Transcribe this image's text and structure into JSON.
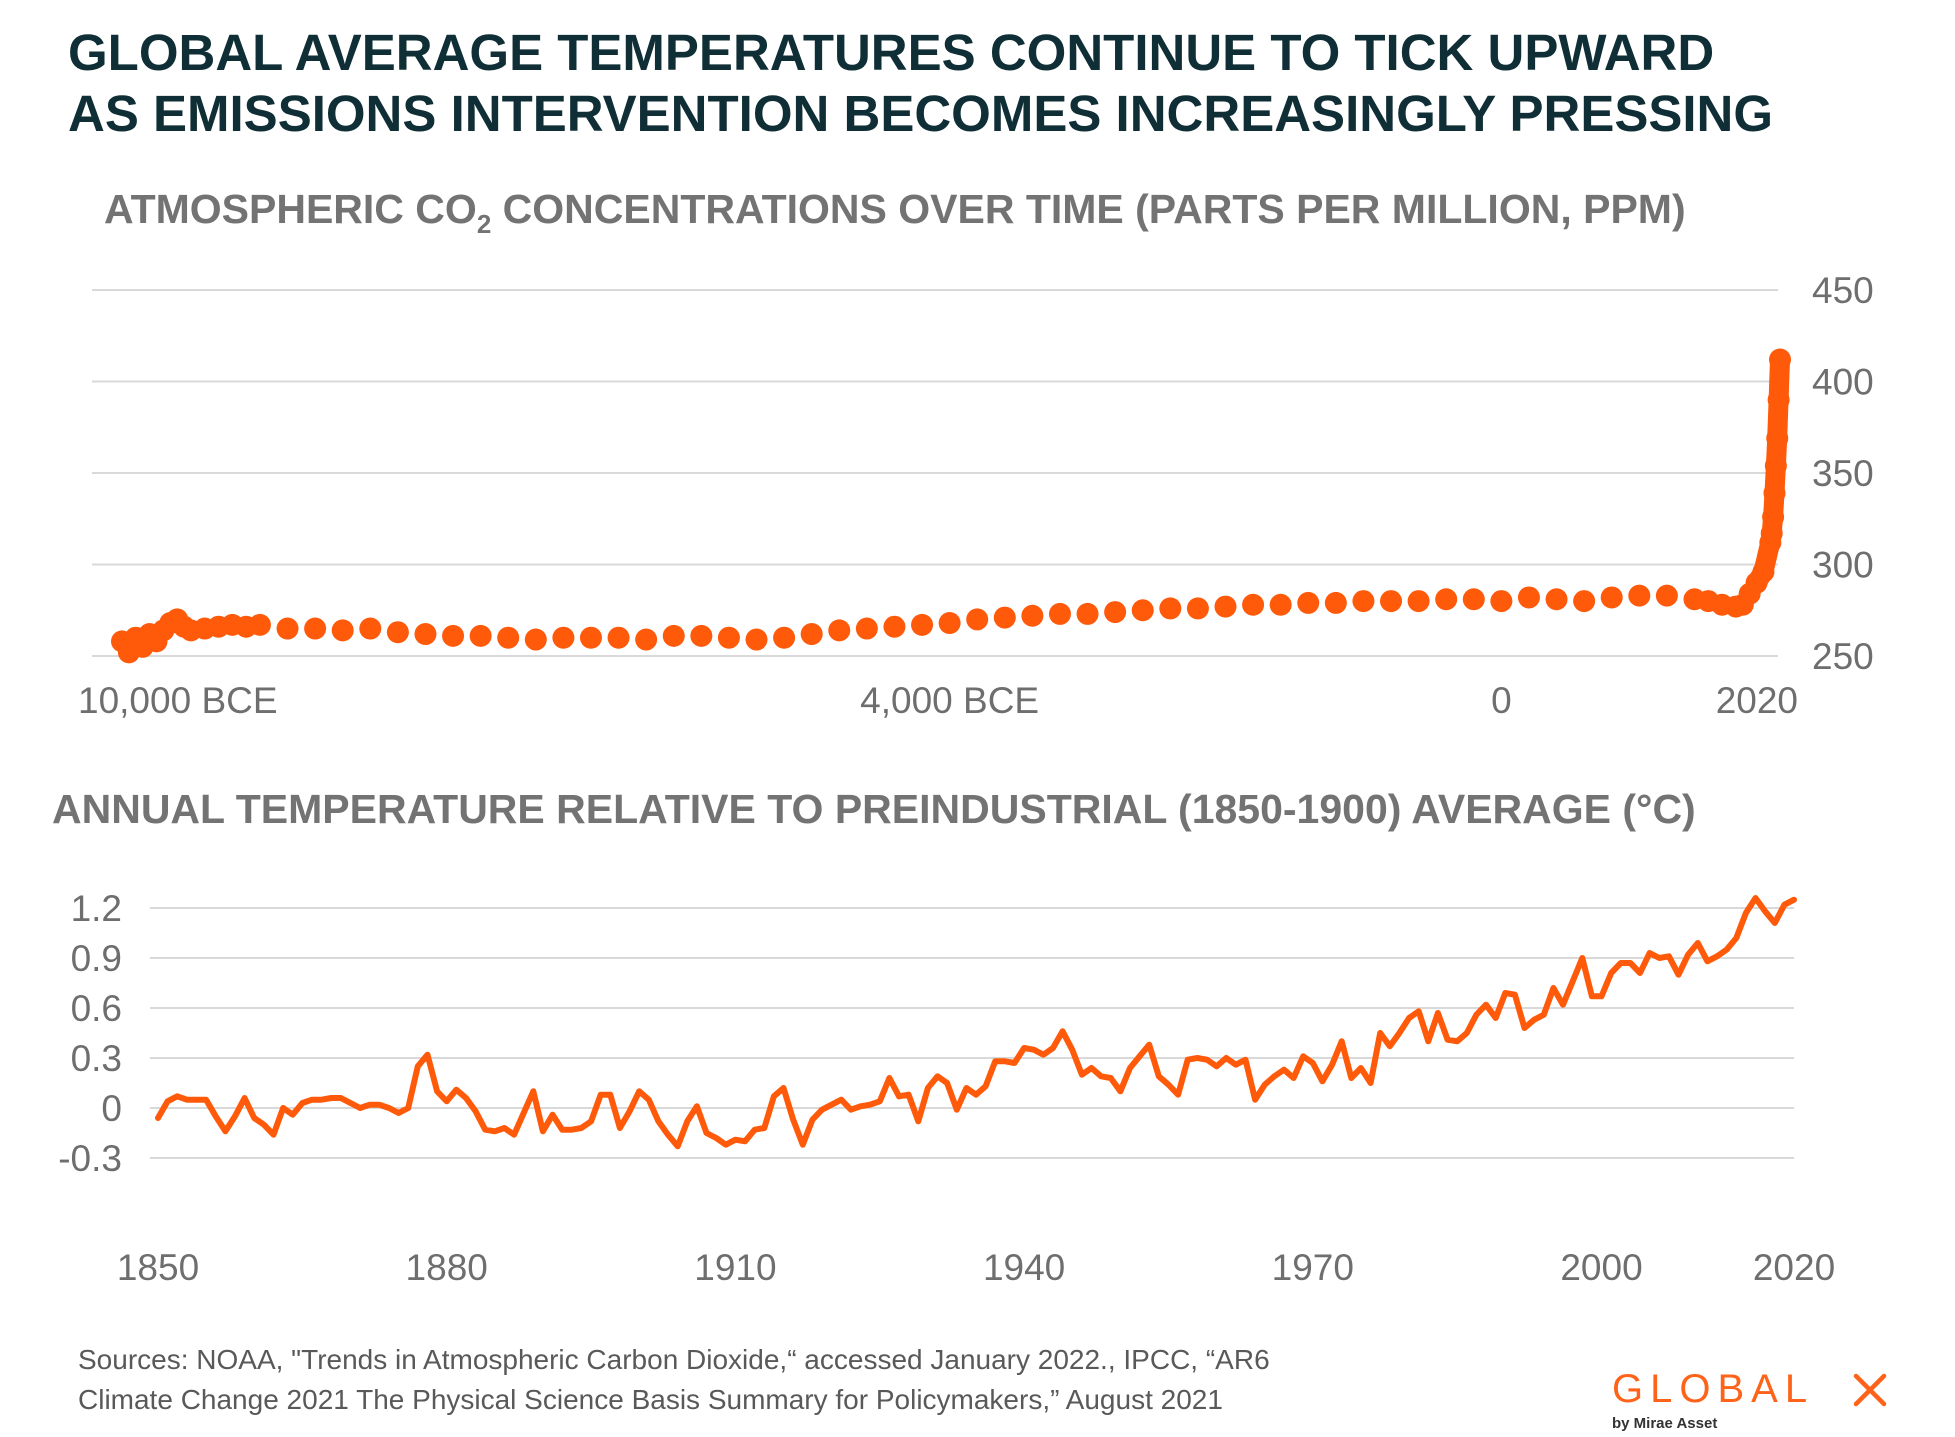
{
  "headline": {
    "line1": "GLOBAL AVERAGE TEMPERATURES CONTINUE TO TICK UPWARD",
    "line2": "AS EMISSIONS INTERVENTION BECOMES INCREASINGLY PRESSING"
  },
  "co2_title": {
    "before": "ATMOSPHERIC CO",
    "subscript": "2",
    "after": " CONCENTRATIONS OVER TIME (PARTS PER MILLION, PPM)"
  },
  "temp_title": "ANNUAL TEMPERATURE RELATIVE TO PREINDUSTRIAL (1850-1900) AVERAGE (°C)",
  "sources": {
    "line1": "Sources: NOAA, \"Trends in Atmospheric Carbon Dioxide,“ accessed January 2022., IPCC, “AR6",
    "line2": "Climate Change 2021 The Physical Science Basis Summary for Policymakers,” August 2021"
  },
  "logo": {
    "word": "GLOBAL",
    "mark": "X",
    "tagline": "by Mirae Asset"
  },
  "colors": {
    "series": "#ff5a0a",
    "title": "#0f2e35",
    "subtitle": "#737373",
    "grid": "#d9d9d9",
    "tick": "#6e6e6e",
    "brand": "#ff6319"
  },
  "chart_data": [
    {
      "type": "scatter",
      "title": "ATMOSPHERIC CO2 CONCENTRATIONS OVER TIME (PARTS PER MILLION, PPM)",
      "xlabel": "",
      "ylabel": "",
      "x_unit": "year (negative = BCE)",
      "x_ticks": [
        {
          "value": -10000,
          "label": "10,000 BCE"
        },
        {
          "value": -4000,
          "label": "4,000 BCE"
        },
        {
          "value": 0,
          "label": "0"
        },
        {
          "value": 2020,
          "label": "2020"
        }
      ],
      "xlim": [
        -10000,
        2020
      ],
      "ylim": [
        250,
        450
      ],
      "y_ticks": [
        250,
        300,
        350,
        400,
        450
      ],
      "y_axis_position": "right",
      "grid": true,
      "legend": "none",
      "series": [
        {
          "x": [
            -10000,
            -9950,
            -9900,
            -9850,
            -9800,
            -9750,
            -9700,
            -9650,
            -9600,
            -9550,
            -9500,
            -9400,
            -9300,
            -9200,
            -9100,
            -9000,
            -8800,
            -8600,
            -8400,
            -8200,
            -8000,
            -7800,
            -7600,
            -7400,
            -7200,
            -7000,
            -6800,
            -6600,
            -6400,
            -6200,
            -6000,
            -5800,
            -5600,
            -5400,
            -5200,
            -5000,
            -4800,
            -4600,
            -4400,
            -4200,
            -4000,
            -3800,
            -3600,
            -3400,
            -3200,
            -3000,
            -2800,
            -2600,
            -2400,
            -2200,
            -2000,
            -1800,
            -1600,
            -1400,
            -1200,
            -1000,
            -800,
            -600,
            -400,
            -200,
            0,
            200,
            400,
            600,
            800,
            1000,
            1200,
            1400,
            1500,
            1600,
            1700,
            1750,
            1800,
            1850,
            1900,
            1950,
            1960,
            1970,
            1980,
            1990,
            2000,
            2010,
            2020
          ],
          "y": [
            258,
            252,
            260,
            255,
            262,
            258,
            264,
            268,
            270,
            266,
            264,
            265,
            266,
            267,
            266,
            267,
            265,
            265,
            264,
            265,
            263,
            262,
            261,
            261,
            260,
            259,
            260,
            260,
            260,
            259,
            261,
            261,
            260,
            259,
            260,
            262,
            264,
            265,
            266,
            267,
            268,
            270,
            271,
            272,
            273,
            273,
            274,
            275,
            276,
            276,
            277,
            278,
            278,
            279,
            279,
            280,
            280,
            280,
            281,
            281,
            280,
            282,
            281,
            280,
            282,
            283,
            283,
            281,
            280,
            278,
            277,
            278,
            284,
            290,
            296,
            312,
            317,
            326,
            339,
            354,
            369,
            390,
            412
          ]
        }
      ]
    },
    {
      "type": "line",
      "title": "ANNUAL TEMPERATURE RELATIVE TO PREINDUSTRIAL (1850-1900) AVERAGE (°C)",
      "xlabel": "",
      "ylabel": "",
      "x_ticks": [
        1850,
        1880,
        1910,
        1940,
        1970,
        2000,
        2020
      ],
      "xlim": [
        1850,
        2020
      ],
      "ylim": [
        -0.3,
        1.2
      ],
      "y_ticks": [
        -0.3,
        0,
        0.3,
        0.6,
        0.9,
        1.2
      ],
      "y_axis_position": "left",
      "grid": true,
      "legend": "none",
      "series": [
        {
          "x_start": 1850,
          "x_step": 1,
          "values": [
            -0.06,
            0.04,
            0.07,
            0.05,
            0.05,
            0.05,
            -0.05,
            -0.14,
            -0.05,
            0.06,
            -0.06,
            -0.1,
            -0.16,
            0.0,
            -0.04,
            0.03,
            0.05,
            0.05,
            0.06,
            0.06,
            0.03,
            0.0,
            0.02,
            0.02,
            0.0,
            -0.03,
            0.0,
            0.25,
            0.32,
            0.1,
            0.04,
            0.11,
            0.06,
            -0.02,
            -0.13,
            -0.14,
            -0.12,
            -0.16,
            -0.03,
            0.1,
            -0.14,
            -0.04,
            -0.13,
            -0.13,
            -0.12,
            -0.08,
            0.08,
            0.08,
            -0.12,
            -0.02,
            0.1,
            0.05,
            -0.08,
            -0.16,
            -0.23,
            -0.08,
            0.01,
            -0.15,
            -0.18,
            -0.22,
            -0.19,
            -0.2,
            -0.13,
            -0.12,
            0.07,
            0.12,
            -0.07,
            -0.22,
            -0.07,
            -0.01,
            0.02,
            0.05,
            -0.01,
            0.01,
            0.02,
            0.04,
            0.18,
            0.07,
            0.08,
            -0.08,
            0.12,
            0.19,
            0.15,
            -0.01,
            0.12,
            0.08,
            0.13,
            0.28,
            0.28,
            0.27,
            0.36,
            0.35,
            0.32,
            0.36,
            0.46,
            0.35,
            0.2,
            0.24,
            0.19,
            0.18,
            0.1,
            0.24,
            0.31,
            0.38,
            0.19,
            0.14,
            0.08,
            0.29,
            0.3,
            0.29,
            0.25,
            0.3,
            0.26,
            0.29,
            0.05,
            0.14,
            0.19,
            0.23,
            0.18,
            0.31,
            0.27,
            0.16,
            0.26,
            0.4,
            0.18,
            0.24,
            0.15,
            0.45,
            0.37,
            0.45,
            0.54,
            0.58,
            0.4,
            0.57,
            0.41,
            0.4,
            0.45,
            0.56,
            0.62,
            0.54,
            0.69,
            0.68,
            0.48,
            0.53,
            0.56,
            0.72,
            0.62,
            0.76,
            0.9,
            0.67,
            0.67,
            0.81,
            0.87,
            0.87,
            0.81,
            0.93,
            0.9,
            0.91,
            0.8,
            0.92,
            0.99,
            0.88,
            0.91,
            0.95,
            1.02,
            1.17,
            1.26,
            1.18,
            1.11,
            1.22,
            1.25
          ]
        }
      ]
    }
  ]
}
